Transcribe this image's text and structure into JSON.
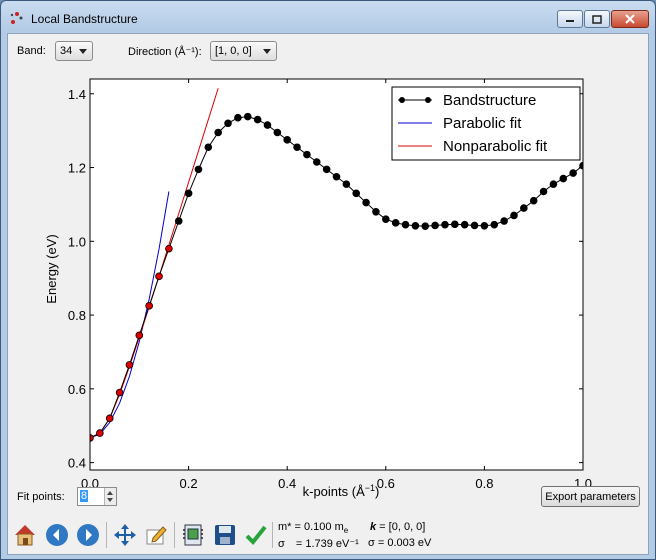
{
  "window": {
    "title": "Local Bandstructure"
  },
  "controls": {
    "band_label": "Band:",
    "band_value": "34",
    "direction_label": "Direction (Å⁻¹):",
    "direction_value": "[1, 0, 0]",
    "fit_points_label": "Fit points:",
    "fit_points_value": "8",
    "export_button": "Export parameters"
  },
  "toolbar": {
    "icons": [
      "home-icon",
      "back-icon",
      "forward-icon",
      "pan-icon",
      "edit-icon",
      "configure-icon",
      "save-icon",
      "check-icon"
    ]
  },
  "info": {
    "mass_label": "m* = 0.100 m",
    "mass_sub": "e",
    "sigma1_label": "σ",
    "sigma1_value": "= 1.739 eV⁻¹",
    "k_label": "k",
    "k_value": " = [0, 0, 0]",
    "sigma2_value": "σ = 0.003 eV"
  },
  "colors": {
    "band": "#000000",
    "parabolic": "#0000cc",
    "nonparabolic": "#dd0000",
    "marker_fit": "#dd0000"
  },
  "chart_data": {
    "type": "line",
    "xlabel": "k-points (Å",
    "xlabel_sup": "−1",
    "xlabel_end": ")",
    "ylabel": "Energy (eV)",
    "xlim": [
      0.0,
      1.0
    ],
    "ylim": [
      0.38,
      1.44
    ],
    "xticks": [
      "0.0",
      "0.2",
      "0.4",
      "0.6",
      "0.8",
      "1.0"
    ],
    "yticks": [
      "0.4",
      "0.6",
      "0.8",
      "1.0",
      "1.2",
      "1.4"
    ],
    "legend_position": "top-right",
    "series": [
      {
        "name": "Bandstructure",
        "x": [
          0.0,
          0.02,
          0.04,
          0.06,
          0.08,
          0.1,
          0.12,
          0.14,
          0.16,
          0.18,
          0.2,
          0.22,
          0.24,
          0.26,
          0.28,
          0.3,
          0.32,
          0.34,
          0.36,
          0.38,
          0.4,
          0.42,
          0.44,
          0.46,
          0.48,
          0.5,
          0.52,
          0.54,
          0.56,
          0.58,
          0.6,
          0.62,
          0.64,
          0.66,
          0.68,
          0.7,
          0.72,
          0.74,
          0.76,
          0.78,
          0.8,
          0.82,
          0.84,
          0.86,
          0.88,
          0.9,
          0.92,
          0.94,
          0.96,
          0.98,
          1.0
        ],
        "y": [
          0.467,
          0.48,
          0.52,
          0.59,
          0.665,
          0.745,
          0.825,
          0.905,
          0.98,
          1.055,
          1.13,
          1.195,
          1.255,
          1.295,
          1.32,
          1.335,
          1.338,
          1.33,
          1.315,
          1.295,
          1.275,
          1.255,
          1.235,
          1.215,
          1.195,
          1.175,
          1.155,
          1.13,
          1.105,
          1.08,
          1.06,
          1.05,
          1.045,
          1.042,
          1.041,
          1.043,
          1.045,
          1.046,
          1.045,
          1.043,
          1.042,
          1.045,
          1.055,
          1.07,
          1.09,
          1.11,
          1.135,
          1.155,
          1.17,
          1.185,
          1.205
        ]
      },
      {
        "name": "Parabolic fit",
        "x": [
          0.0,
          0.02,
          0.04,
          0.06,
          0.08,
          0.1,
          0.12,
          0.14,
          0.16
        ],
        "y": [
          0.467,
          0.477,
          0.509,
          0.561,
          0.634,
          0.728,
          0.843,
          0.979,
          1.135
        ]
      },
      {
        "name": "Nonparabolic fit",
        "x": [
          0.0,
          0.02,
          0.04,
          0.06,
          0.08,
          0.1,
          0.12,
          0.14,
          0.16,
          0.18,
          0.2,
          0.22,
          0.24,
          0.26
        ],
        "y": [
          0.467,
          0.48,
          0.52,
          0.585,
          0.66,
          0.74,
          0.822,
          0.905,
          0.99,
          1.075,
          1.16,
          1.245,
          1.33,
          1.415
        ]
      }
    ],
    "fit_points_x": [
      0.0,
      0.02,
      0.04,
      0.06,
      0.08,
      0.1,
      0.12,
      0.14,
      0.16
    ]
  }
}
